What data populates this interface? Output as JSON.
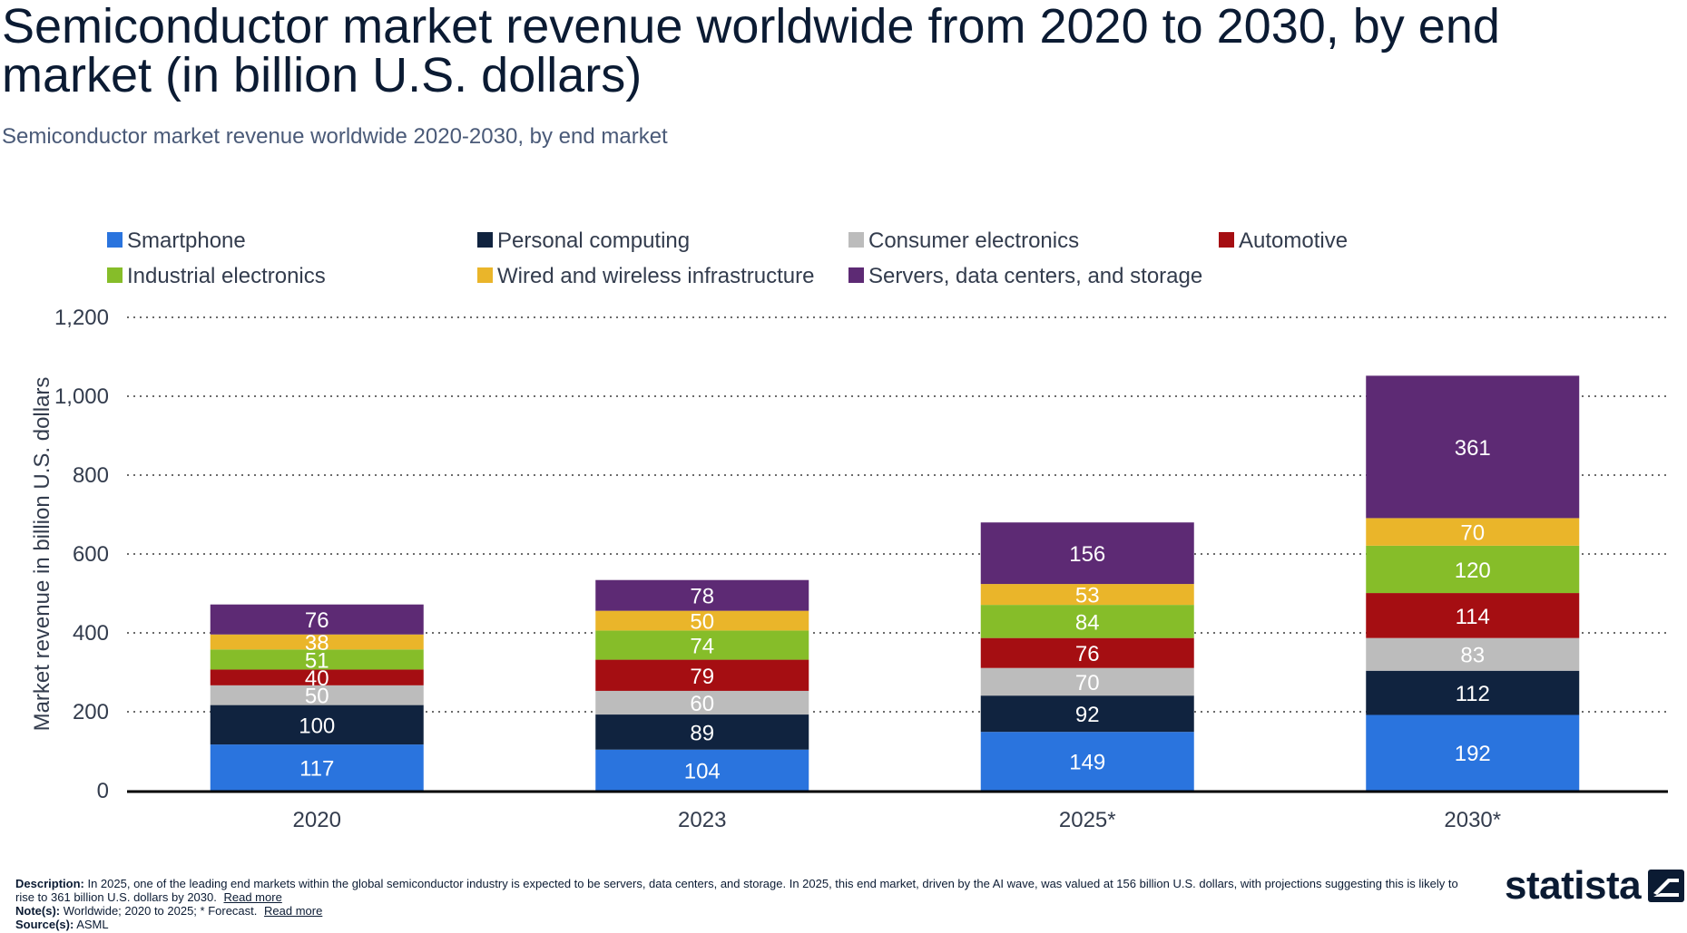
{
  "title": "Semiconductor market revenue worldwide from 2020 to 2030, by end market (in billion U.S. dollars)",
  "subtitle": "Semiconductor market revenue worldwide 2020-2030, by end market",
  "chart_data": {
    "type": "bar",
    "stacked": true,
    "categories": [
      "2020",
      "2023",
      "2025*",
      "2030*"
    ],
    "series": [
      {
        "name": "Smartphone",
        "color": "#2a74de",
        "values": [
          117,
          104,
          149,
          192
        ],
        "label_color": "#ffffff"
      },
      {
        "name": "Personal computing",
        "color": "#10233f",
        "values": [
          100,
          89,
          92,
          112
        ],
        "label_color": "#ffffff"
      },
      {
        "name": "Consumer electronics",
        "color": "#bcbcbc",
        "values": [
          50,
          60,
          70,
          83
        ],
        "label_color": "#ffffff"
      },
      {
        "name": "Automotive",
        "color": "#a50e12",
        "values": [
          40,
          79,
          76,
          114
        ],
        "label_color": "#ffffff"
      },
      {
        "name": "Industrial electronics",
        "color": "#86bd29",
        "values": [
          51,
          74,
          84,
          120
        ],
        "label_color": "#ffffff"
      },
      {
        "name": "Wired and wireless infrastructure",
        "color": "#eab52a",
        "values": [
          38,
          50,
          53,
          70
        ],
        "label_color": "#ffffff"
      },
      {
        "name": "Servers, data centers, and storage",
        "color": "#5d2a74",
        "values": [
          76,
          78,
          156,
          361
        ],
        "label_color": "#ffffff"
      }
    ],
    "ylabel": "Market revenue in billion U.S. dollars",
    "xlabel": "",
    "ylim": [
      0,
      1200
    ],
    "yticks": [
      "0",
      "200",
      "400",
      "600",
      "800",
      "1,000",
      "1,200"
    ],
    "ytick_values": [
      0,
      200,
      400,
      600,
      800,
      1000,
      1200
    ],
    "grid": true,
    "legend_position": "top"
  },
  "footer": {
    "description_label": "Description:",
    "description": "In 2025, one of the leading end markets within the global semiconductor industry is expected to be servers, data centers, and storage. In 2025, this end market, driven by the AI wave, was valued at 156 billion U.S. dollars, with projections suggesting this is likely to rise to 361 billion U.S. dollars by 2030.",
    "notes_label": "Note(s):",
    "notes": "Worldwide; 2020 to 2025; * Forecast.",
    "sources_label": "Source(s):",
    "sources": "ASML",
    "read_more": "Read more"
  },
  "logo": {
    "text": "statista"
  }
}
